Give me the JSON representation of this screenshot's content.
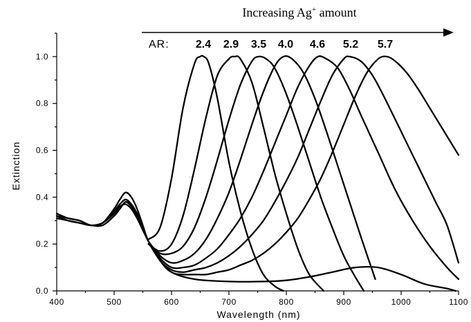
{
  "chart_data": {
    "type": "line",
    "title": "",
    "xlabel": "Wavelength (nm)",
    "ylabel": "Extinction",
    "xlim": [
      400,
      1100
    ],
    "ylim": [
      0.0,
      1.1
    ],
    "xticks": [
      "400",
      "500",
      "600",
      "700",
      "800",
      "900",
      "1000",
      "1100"
    ],
    "yticks": [
      "0.0",
      "0.2",
      "0.4",
      "0.6",
      "0.8",
      "1.0"
    ],
    "legend": "none",
    "grid": false,
    "annotation": {
      "prefix": "Increasing Ag",
      "superscript": "+",
      "suffix": " amount",
      "ar_label": "AR:"
    },
    "aspect_ratios": [
      "2.4",
      "2.9",
      "3.5",
      "4.0",
      "4.6",
      "5.2",
      "5.7"
    ],
    "series": [
      {
        "x": [
          560,
          580,
          600,
          620,
          640,
          650,
          656,
          665,
          680,
          700,
          720,
          740,
          760,
          780,
          795
        ],
        "y": [
          0.22,
          0.27,
          0.48,
          0.78,
          0.97,
          1.0,
          1.0,
          0.97,
          0.82,
          0.55,
          0.34,
          0.18,
          0.07,
          0.02,
          0.0
        ]
      },
      {
        "x": [
          560,
          580,
          600,
          620,
          640,
          660,
          680,
          700,
          710,
          720,
          740,
          760,
          780,
          800,
          820,
          840,
          865
        ],
        "y": [
          0.2,
          0.17,
          0.2,
          0.32,
          0.52,
          0.74,
          0.92,
          0.99,
          1.0,
          0.99,
          0.89,
          0.7,
          0.5,
          0.33,
          0.18,
          0.07,
          0.0
        ]
      },
      {
        "x": [
          560,
          580,
          600,
          620,
          640,
          660,
          680,
          700,
          720,
          740,
          752,
          765,
          780,
          800,
          820,
          840,
          860,
          880,
          900,
          920,
          935
        ],
        "y": [
          0.2,
          0.16,
          0.16,
          0.19,
          0.27,
          0.4,
          0.56,
          0.73,
          0.88,
          0.98,
          1.0,
          0.99,
          0.95,
          0.84,
          0.7,
          0.55,
          0.4,
          0.27,
          0.15,
          0.06,
          0.0
        ]
      },
      {
        "x": [
          560,
          580,
          600,
          620,
          640,
          660,
          680,
          700,
          720,
          740,
          760,
          780,
          795,
          810,
          830,
          850,
          870,
          890,
          910,
          930,
          955
        ],
        "y": [
          0.21,
          0.15,
          0.12,
          0.13,
          0.16,
          0.22,
          0.31,
          0.42,
          0.56,
          0.71,
          0.85,
          0.96,
          1.0,
          0.99,
          0.93,
          0.82,
          0.68,
          0.53,
          0.38,
          0.23,
          0.05
        ]
      },
      {
        "x": [
          560,
          580,
          600,
          620,
          640,
          660,
          680,
          700,
          720,
          740,
          760,
          780,
          800,
          820,
          840,
          855,
          870,
          890,
          910,
          930,
          960,
          990,
          1020,
          1050,
          1080,
          1100
        ],
        "y": [
          0.21,
          0.14,
          0.1,
          0.1,
          0.11,
          0.14,
          0.18,
          0.24,
          0.31,
          0.4,
          0.51,
          0.63,
          0.75,
          0.87,
          0.96,
          1.0,
          0.99,
          0.95,
          0.86,
          0.75,
          0.59,
          0.43,
          0.3,
          0.19,
          0.1,
          0.05
        ]
      },
      {
        "x": [
          560,
          580,
          600,
          620,
          640,
          660,
          680,
          700,
          720,
          740,
          760,
          780,
          800,
          820,
          840,
          860,
          880,
          900,
          910,
          930,
          950,
          970,
          1000,
          1030,
          1060,
          1080,
          1100
        ],
        "y": [
          0.21,
          0.13,
          0.09,
          0.08,
          0.09,
          0.1,
          0.12,
          0.15,
          0.19,
          0.24,
          0.3,
          0.38,
          0.47,
          0.57,
          0.69,
          0.81,
          0.92,
          0.99,
          1.0,
          0.98,
          0.92,
          0.83,
          0.68,
          0.53,
          0.38,
          0.28,
          0.12
        ]
      },
      {
        "x": [
          560,
          580,
          600,
          620,
          640,
          660,
          680,
          700,
          720,
          740,
          760,
          780,
          800,
          820,
          840,
          860,
          880,
          900,
          920,
          940,
          960,
          975,
          990,
          1010,
          1030,
          1050,
          1070,
          1090,
          1100
        ],
        "y": [
          0.21,
          0.13,
          0.08,
          0.07,
          0.07,
          0.07,
          0.08,
          0.09,
          0.11,
          0.13,
          0.16,
          0.2,
          0.25,
          0.31,
          0.39,
          0.48,
          0.59,
          0.71,
          0.83,
          0.93,
          0.99,
          1.0,
          0.98,
          0.93,
          0.86,
          0.78,
          0.7,
          0.62,
          0.58
        ]
      },
      {
        "x": [
          400,
          420,
          440,
          460,
          480,
          500,
          510,
          520,
          530,
          540,
          550,
          560,
          580,
          600,
          640,
          700,
          760,
          800,
          840,
          880,
          920,
          960,
          1000,
          1040,
          1080,
          1095
        ],
        "y": [
          0.33,
          0.31,
          0.3,
          0.28,
          0.29,
          0.35,
          0.39,
          0.42,
          0.4,
          0.35,
          0.28,
          0.21,
          0.13,
          0.08,
          0.05,
          0.04,
          0.04,
          0.045,
          0.06,
          0.08,
          0.1,
          0.1,
          0.07,
          0.03,
          0.01,
          0.0
        ]
      },
      {
        "x": [
          400,
          420,
          440,
          460,
          480,
          500,
          510,
          520,
          530,
          540,
          550,
          560
        ],
        "y": [
          0.32,
          0.31,
          0.3,
          0.28,
          0.29,
          0.34,
          0.37,
          0.39,
          0.37,
          0.33,
          0.27,
          0.21
        ]
      },
      {
        "x": [
          400,
          420,
          440,
          460,
          480,
          500,
          510,
          520,
          530,
          540,
          550,
          560
        ],
        "y": [
          0.31,
          0.3,
          0.29,
          0.28,
          0.29,
          0.33,
          0.36,
          0.37,
          0.35,
          0.31,
          0.26,
          0.21
        ]
      },
      {
        "x": [
          400,
          420,
          440,
          460,
          480,
          500,
          510,
          520,
          530,
          540,
          550,
          560
        ],
        "y": [
          0.32,
          0.3,
          0.29,
          0.28,
          0.28,
          0.32,
          0.35,
          0.38,
          0.36,
          0.32,
          0.26,
          0.21
        ]
      }
    ]
  }
}
